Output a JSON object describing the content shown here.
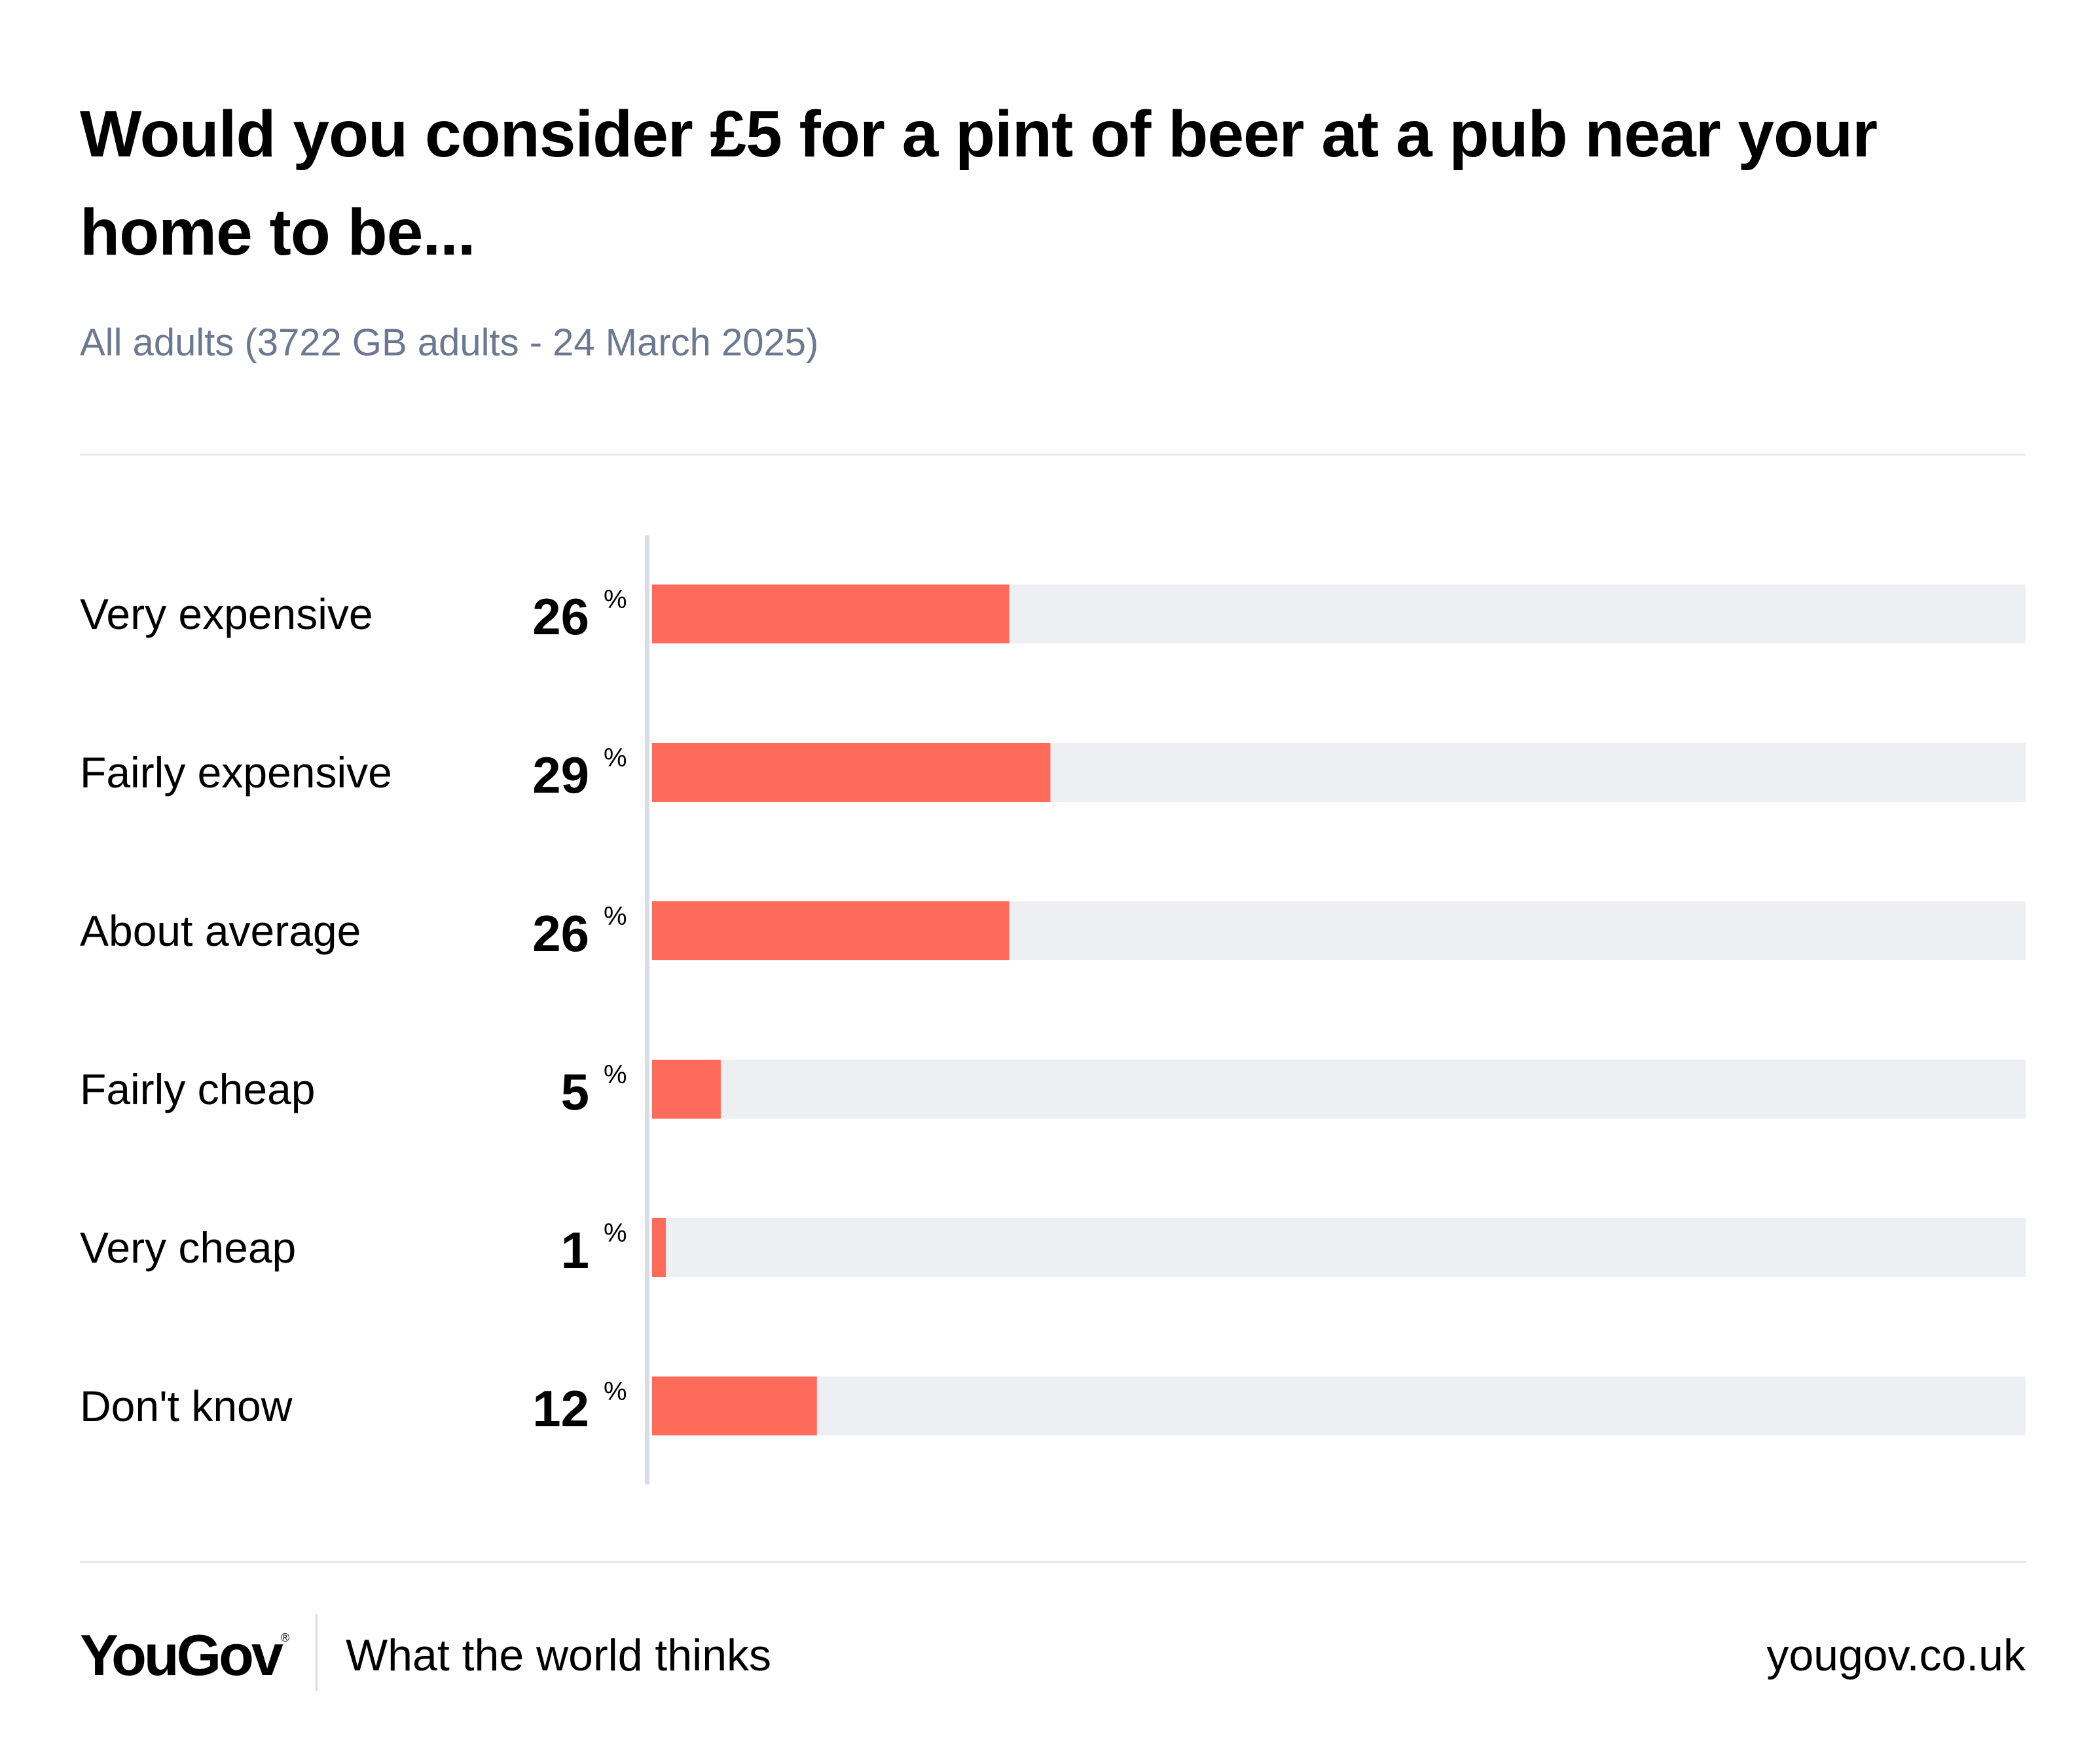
{
  "chart_data": {
    "type": "bar",
    "orientation": "horizontal",
    "title": "Would you consider £5 for a pint of beer at a pub near your home to be...",
    "subtitle": "All adults (3722 GB adults - 24 March 2025)",
    "categories": [
      "Very expensive",
      "Fairly expensive",
      "About average",
      "Fairly cheap",
      "Very cheap",
      "Don't know"
    ],
    "values": [
      26,
      29,
      26,
      5,
      1,
      12
    ],
    "value_suffix": "%",
    "xlim": [
      0,
      100
    ],
    "grid": false,
    "legend": "none"
  },
  "colors": {
    "bar": "#ff6b5b",
    "track": "#eeeff3",
    "axis": "#d9dbe6"
  },
  "footer": {
    "logo": "YouGov",
    "logo_mark": "®",
    "tagline": "What the world thinks",
    "site": "yougov.co.uk"
  }
}
